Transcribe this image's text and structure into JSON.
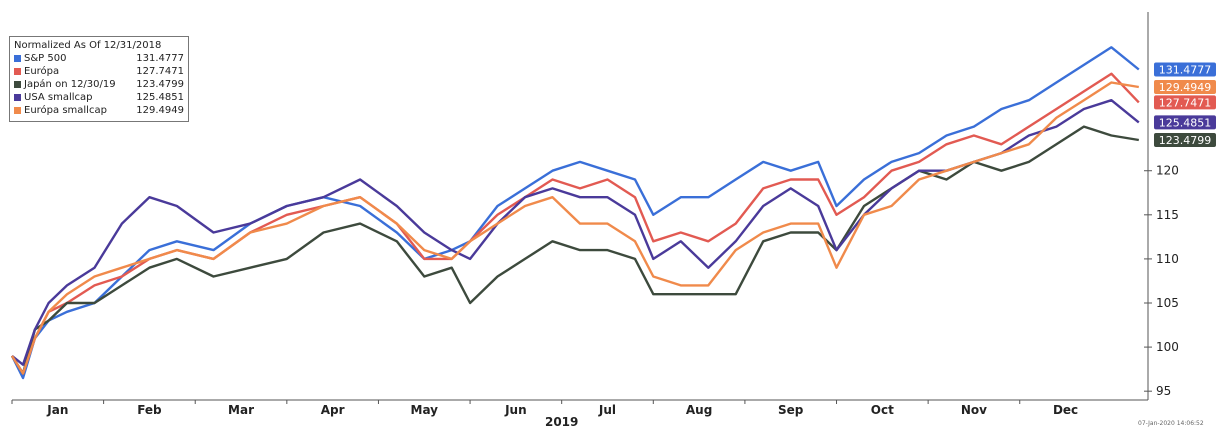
{
  "chart_data": {
    "type": "line",
    "xlabel": "2019",
    "ylabel": "",
    "ylim": [
      94,
      138
    ],
    "yticks": [
      95,
      100,
      105,
      110,
      115,
      120
    ],
    "xtick_labels": [
      "Jan",
      "Feb",
      "Mar",
      "Apr",
      "May",
      "Jun",
      "Jul",
      "Aug",
      "Sep",
      "Oct",
      "Nov",
      "Dec"
    ],
    "xlim": [
      0,
      12.4
    ],
    "grid": false,
    "legend_position": "top-left",
    "legend_title": "Normalized As Of 12/31/2018",
    "footer": "07-Jan-2020 14:06:52",
    "series": [
      {
        "name": "S&P 500",
        "end_label": "131.4777",
        "color": "#3a6fd8",
        "x": [
          0,
          0.12,
          0.25,
          0.4,
          0.6,
          0.9,
          1.2,
          1.5,
          1.8,
          2.2,
          2.6,
          3.0,
          3.4,
          3.8,
          4.2,
          4.5,
          4.8,
          5.0,
          5.3,
          5.6,
          5.9,
          6.2,
          6.5,
          6.8,
          7.0,
          7.3,
          7.6,
          7.9,
          8.2,
          8.5,
          8.8,
          9.0,
          9.3,
          9.6,
          9.9,
          10.2,
          10.5,
          10.8,
          11.1,
          11.4,
          11.7,
          12.0,
          12.3
        ],
        "y": [
          99,
          96.5,
          101,
          103,
          104,
          105,
          108,
          111,
          112,
          111,
          114,
          116,
          117,
          116,
          113,
          110,
          111,
          112,
          116,
          118,
          120,
          121,
          120,
          119,
          115,
          117,
          117,
          119,
          121,
          120,
          121,
          116,
          119,
          121,
          122,
          124,
          125,
          127,
          128,
          130,
          132,
          134,
          131.4777
        ]
      },
      {
        "name": "Európa",
        "end_label": "127.7471",
        "color": "#e25a52",
        "x": [
          0,
          0.12,
          0.25,
          0.4,
          0.6,
          0.9,
          1.2,
          1.5,
          1.8,
          2.2,
          2.6,
          3.0,
          3.4,
          3.8,
          4.2,
          4.5,
          4.8,
          5.0,
          5.3,
          5.6,
          5.9,
          6.2,
          6.5,
          6.8,
          7.0,
          7.3,
          7.6,
          7.9,
          8.2,
          8.5,
          8.8,
          9.0,
          9.3,
          9.6,
          9.9,
          10.2,
          10.5,
          10.8,
          11.1,
          11.4,
          11.7,
          12.0,
          12.3
        ],
        "y": [
          99,
          97,
          101,
          104,
          105,
          107,
          108,
          110,
          111,
          110,
          113,
          115,
          116,
          117,
          114,
          110,
          110,
          112,
          115,
          117,
          119,
          118,
          119,
          117,
          112,
          113,
          112,
          114,
          118,
          119,
          119,
          115,
          117,
          120,
          121,
          123,
          124,
          123,
          125,
          127,
          129,
          131,
          127.7471
        ]
      },
      {
        "name": "Japán on 12/30/19",
        "end_label": "123.4799",
        "color": "#3d4a3d",
        "x": [
          0,
          0.12,
          0.25,
          0.4,
          0.6,
          0.9,
          1.2,
          1.5,
          1.8,
          2.2,
          2.6,
          3.0,
          3.4,
          3.8,
          4.2,
          4.5,
          4.8,
          5.0,
          5.3,
          5.6,
          5.9,
          6.2,
          6.5,
          6.8,
          7.0,
          7.3,
          7.6,
          7.9,
          8.2,
          8.5,
          8.8,
          9.0,
          9.3,
          9.6,
          9.9,
          10.2,
          10.5,
          10.8,
          11.1,
          11.4,
          11.7,
          12.0,
          12.3
        ],
        "y": [
          99,
          97,
          102,
          103,
          105,
          105,
          107,
          109,
          110,
          108,
          109,
          110,
          113,
          114,
          112,
          108,
          109,
          105,
          108,
          110,
          112,
          111,
          111,
          110,
          106,
          106,
          106,
          106,
          112,
          113,
          113,
          111,
          116,
          118,
          120,
          119,
          121,
          120,
          121,
          123,
          125,
          124,
          123.4799
        ]
      },
      {
        "name": "USA smallcap",
        "end_label": "125.4851",
        "color": "#4a3a9a",
        "x": [
          0,
          0.12,
          0.25,
          0.4,
          0.6,
          0.9,
          1.2,
          1.5,
          1.8,
          2.2,
          2.6,
          3.0,
          3.4,
          3.8,
          4.2,
          4.5,
          4.8,
          5.0,
          5.3,
          5.6,
          5.9,
          6.2,
          6.5,
          6.8,
          7.0,
          7.3,
          7.6,
          7.9,
          8.2,
          8.5,
          8.8,
          9.0,
          9.3,
          9.6,
          9.9,
          10.2,
          10.5,
          10.8,
          11.1,
          11.4,
          11.7,
          12.0,
          12.3
        ],
        "y": [
          99,
          98,
          102,
          105,
          107,
          109,
          114,
          117,
          116,
          113,
          114,
          116,
          117,
          119,
          116,
          113,
          111,
          110,
          114,
          117,
          118,
          117,
          117,
          115,
          110,
          112,
          109,
          112,
          116,
          118,
          116,
          111,
          115,
          118,
          120,
          120,
          121,
          122,
          124,
          125,
          127,
          128,
          125.4851
        ]
      },
      {
        "name": "Európa smallcap",
        "end_label": "129.4949",
        "color": "#f08a4b",
        "x": [
          0,
          0.12,
          0.25,
          0.4,
          0.6,
          0.9,
          1.2,
          1.5,
          1.8,
          2.2,
          2.6,
          3.0,
          3.4,
          3.8,
          4.2,
          4.5,
          4.8,
          5.0,
          5.3,
          5.6,
          5.9,
          6.2,
          6.5,
          6.8,
          7.0,
          7.3,
          7.6,
          7.9,
          8.2,
          8.5,
          8.8,
          9.0,
          9.3,
          9.6,
          9.9,
          10.2,
          10.5,
          10.8,
          11.1,
          11.4,
          11.7,
          12.0,
          12.3
        ],
        "y": [
          99,
          97,
          101,
          104,
          106,
          108,
          109,
          110,
          111,
          110,
          113,
          114,
          116,
          117,
          114,
          111,
          110,
          112,
          114,
          116,
          117,
          114,
          114,
          112,
          108,
          107,
          107,
          111,
          113,
          114,
          114,
          109,
          115,
          116,
          119,
          120,
          121,
          122,
          123,
          126,
          128,
          130,
          129.4949
        ]
      }
    ]
  }
}
